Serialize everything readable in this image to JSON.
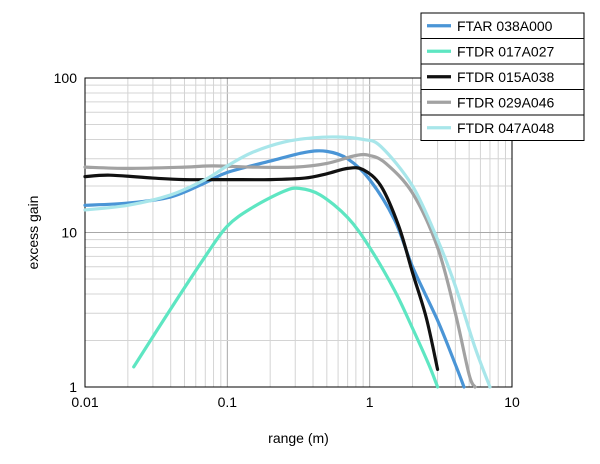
{
  "chart_data": {
    "type": "line",
    "xlabel": "range (m)",
    "ylabel": "excess gain",
    "x_scale": "log",
    "y_scale": "log",
    "xlim": [
      0.01,
      10
    ],
    "ylim": [
      1,
      100
    ],
    "x_ticks": [
      {
        "value": 0.01,
        "label": "0.01"
      },
      {
        "value": 0.1,
        "label": "0.1"
      },
      {
        "value": 1,
        "label": "1"
      },
      {
        "value": 10,
        "label": "10"
      }
    ],
    "y_ticks": [
      {
        "value": 1,
        "label": "1"
      },
      {
        "value": 10,
        "label": "10"
      },
      {
        "value": 100,
        "label": "100"
      }
    ],
    "grid": true,
    "legend_position": "top-right",
    "series": [
      {
        "name": "FTAR 038A000",
        "color": "#4a95d6",
        "points": [
          [
            0.01,
            15.0
          ],
          [
            0.02,
            15.5
          ],
          [
            0.04,
            17.0
          ],
          [
            0.07,
            21.0
          ],
          [
            0.1,
            24.5
          ],
          [
            0.2,
            29.0
          ],
          [
            0.35,
            33.0
          ],
          [
            0.5,
            33.5
          ],
          [
            0.7,
            30.0
          ],
          [
            1.0,
            22.0
          ],
          [
            1.5,
            12.0
          ],
          [
            2.0,
            6.0
          ],
          [
            3.0,
            2.7
          ],
          [
            4.0,
            1.4
          ],
          [
            4.6,
            1.0
          ]
        ]
      },
      {
        "name": "FTDR 017A027",
        "color": "#5ee6c2",
        "points": [
          [
            0.022,
            1.35
          ],
          [
            0.04,
            3.2
          ],
          [
            0.07,
            7.0
          ],
          [
            0.1,
            11.0
          ],
          [
            0.15,
            14.5
          ],
          [
            0.25,
            18.5
          ],
          [
            0.32,
            19.3
          ],
          [
            0.45,
            17.5
          ],
          [
            0.7,
            12.5
          ],
          [
            1.0,
            8.0
          ],
          [
            1.5,
            4.2
          ],
          [
            2.0,
            2.4
          ],
          [
            2.6,
            1.4
          ],
          [
            3.0,
            1.0
          ]
        ]
      },
      {
        "name": "FTDR 015A038",
        "color": "#111111",
        "points": [
          [
            0.01,
            23.0
          ],
          [
            0.015,
            23.5
          ],
          [
            0.03,
            22.5
          ],
          [
            0.05,
            22.0
          ],
          [
            0.1,
            22.0
          ],
          [
            0.2,
            22.0
          ],
          [
            0.35,
            22.5
          ],
          [
            0.5,
            24.0
          ],
          [
            0.7,
            26.0
          ],
          [
            0.9,
            25.5
          ],
          [
            1.2,
            20.0
          ],
          [
            1.6,
            11.0
          ],
          [
            2.0,
            5.5
          ],
          [
            2.5,
            2.8
          ],
          [
            3.0,
            1.3
          ]
        ]
      },
      {
        "name": "FTDR 029A046",
        "color": "#a2a2a2",
        "points": [
          [
            0.01,
            26.5
          ],
          [
            0.02,
            26.0
          ],
          [
            0.05,
            26.5
          ],
          [
            0.08,
            27.0
          ],
          [
            0.15,
            26.5
          ],
          [
            0.3,
            26.5
          ],
          [
            0.5,
            28.0
          ],
          [
            0.8,
            31.5
          ],
          [
            1.0,
            31.5
          ],
          [
            1.3,
            28.0
          ],
          [
            2.0,
            18.0
          ],
          [
            3.0,
            8.0
          ],
          [
            4.0,
            3.0
          ],
          [
            5.0,
            1.2
          ],
          [
            5.5,
            1.0
          ]
        ]
      },
      {
        "name": "FTDR 047A048",
        "color": "#a8e6ea",
        "points": [
          [
            0.01,
            14.0
          ],
          [
            0.02,
            15.0
          ],
          [
            0.04,
            17.5
          ],
          [
            0.07,
            22.0
          ],
          [
            0.1,
            27.0
          ],
          [
            0.15,
            33.0
          ],
          [
            0.25,
            38.5
          ],
          [
            0.4,
            41.0
          ],
          [
            0.6,
            41.5
          ],
          [
            0.9,
            40.0
          ],
          [
            1.2,
            36.0
          ],
          [
            2.0,
            20.0
          ],
          [
            3.0,
            9.0
          ],
          [
            4.0,
            4.5
          ],
          [
            5.5,
            1.8
          ],
          [
            7.0,
            1.0
          ]
        ]
      }
    ]
  }
}
